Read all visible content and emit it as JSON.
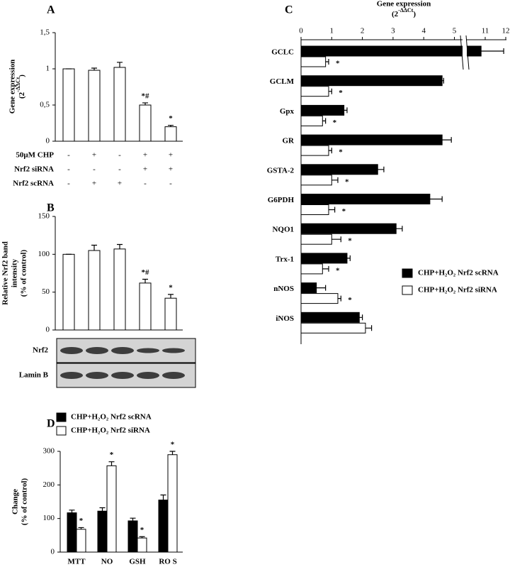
{
  "chart_data": [
    {
      "panel": "A",
      "type": "bar",
      "ylabel": [
        "Gene expression"
      ],
      "ylabel_unit": [
        "(2",
        "-ΔΔCt",
        ")"
      ],
      "ylim": [
        0,
        1.5
      ],
      "yticks": [
        0,
        {
          "value": 0.5,
          "label": "0,5"
        },
        1,
        {
          "value": 1.5,
          "label": "1,5"
        }
      ],
      "values": [
        1,
        0.98,
        1.02,
        0.5,
        0.2
      ],
      "errors": [
        0,
        0.03,
        0.07,
        0.03,
        0.02
      ],
      "value_annotations": [
        null,
        null,
        null,
        "*#",
        "*"
      ],
      "color": "#ffffff",
      "conditions": [
        {
          "label": "50μM CHP",
          "values": [
            "-",
            "+",
            "-",
            "+",
            "+"
          ]
        },
        {
          "label": "Nrf2 siRNA",
          "values": [
            "-",
            "-",
            "-",
            "+",
            "+"
          ]
        },
        {
          "label": "Nrf2 scRNA",
          "values": [
            "-",
            "+",
            "+",
            "-",
            "-"
          ]
        }
      ]
    },
    {
      "panel": "B",
      "type": "bar",
      "ylabel": [
        "Relative Nrf2 band",
        "intensity",
        "(% of control)"
      ],
      "ylim": [
        0,
        150
      ],
      "yticks": [
        0,
        50,
        100,
        150
      ],
      "values": [
        100,
        105,
        107,
        62,
        42
      ],
      "errors": [
        0,
        7,
        6,
        5,
        5
      ],
      "value_annotations": [
        null,
        null,
        null,
        "*#",
        "*"
      ],
      "color": "#ffffff",
      "blot_labels": [
        "Nrf2",
        "Lamin B"
      ]
    },
    {
      "panel": "C",
      "type": "barh",
      "xlabel": "Gene expression",
      "xlabel_unit": [
        "(2",
        "-ΔΔCt",
        ")"
      ],
      "xlim": [
        0,
        12
      ],
      "xticks": [
        0,
        1,
        2,
        3,
        4,
        5,
        11,
        12
      ],
      "axis_break": true,
      "categories": [
        "GCLC",
        "GCLM",
        "Gpx",
        "GR",
        "GSTA-2",
        "G6PDH",
        "NQO1",
        "Trx-1",
        "nNOS",
        "iNOS"
      ],
      "series": [
        {
          "name": "CHP+H₂O₂ Nrf2 scRNA",
          "color": "#000000",
          "values": [
            10.8,
            4.6,
            1.4,
            4.6,
            2.5,
            4.2,
            3.1,
            1.5,
            0.5,
            1.9
          ],
          "errors": [
            1.1,
            0.05,
            0.1,
            0.3,
            0.2,
            0.4,
            0.2,
            0.1,
            0.3,
            0.1
          ]
        },
        {
          "name": "CHP+H₂O₂ Nrf2 siRNA",
          "color": "#ffffff",
          "values": [
            0.8,
            0.9,
            0.7,
            0.9,
            1.0,
            0.9,
            1.0,
            0.7,
            1.2,
            2.1
          ],
          "errors": [
            0.1,
            0.1,
            0.1,
            0.1,
            0.2,
            0.2,
            0.3,
            0.2,
            0.1,
            0.2
          ],
          "value_annotations": [
            "*",
            "*",
            "*",
            "*",
            "*",
            "*",
            "*",
            "*",
            "*",
            null
          ]
        }
      ],
      "legend": "lower right"
    },
    {
      "panel": "D",
      "type": "bar",
      "ylabel": [
        "Change",
        "(% of control)"
      ],
      "ylim": [
        0,
        300
      ],
      "yticks": [
        0,
        100,
        200,
        300
      ],
      "categories": [
        "MTT",
        "NO",
        "GSH",
        "RO S"
      ],
      "series": [
        {
          "name": "CHP+H₂O₂ Nrf2 scRNA",
          "color": "#000000",
          "values": [
            117,
            122,
            93,
            155
          ],
          "errors": [
            8,
            10,
            8,
            15
          ]
        },
        {
          "name": "CHP+H₂O₂ Nrf2 siRNA",
          "color": "#ffffff",
          "values": [
            68,
            257,
            42,
            290
          ],
          "errors": [
            5,
            12,
            4,
            10
          ],
          "value_annotations": [
            "*",
            "*",
            "*",
            "*"
          ]
        }
      ],
      "legend": "upper left"
    }
  ]
}
